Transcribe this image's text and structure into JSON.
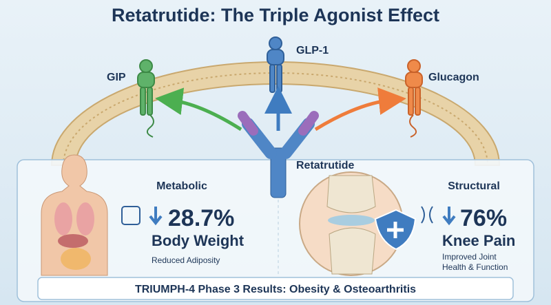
{
  "header": {
    "title": "Retatrutide: The Triple Agonist Effect"
  },
  "receptors": [
    {
      "label": "GIP"
    },
    {
      "label": "GLP-1"
    },
    {
      "label": "Glucagon"
    }
  ],
  "drug": {
    "label": "Retatrutide"
  },
  "panels": [
    {
      "heading": "Metabolic",
      "stat": "28.7%",
      "stat_label": "Body Weight",
      "note_lines": [
        "Reduced Adiposity"
      ]
    },
    {
      "heading": "Structural",
      "stat": "76%",
      "stat_label": "Knee Pain",
      "note_lines": [
        "Improved Joint",
        "Health & Function"
      ]
    }
  ],
  "footer": {
    "text": "TRIUMPH-4 Phase 3 Results: Obesity & Osteoarthritis"
  }
}
